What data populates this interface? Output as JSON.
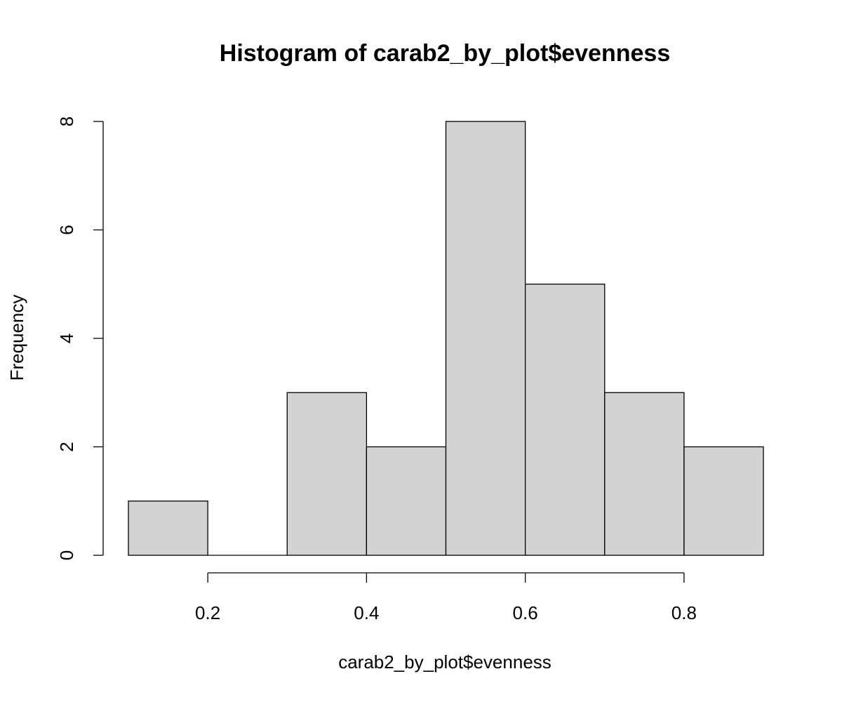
{
  "chart_data": {
    "type": "bar",
    "histogram": true,
    "title": "Histogram of carab2_by_plot$evenness",
    "xlabel": "carab2_by_plot$evenness",
    "ylabel": "Frequency",
    "bins": [
      {
        "from": 0.1,
        "to": 0.2,
        "count": 1
      },
      {
        "from": 0.2,
        "to": 0.3,
        "count": 0
      },
      {
        "from": 0.3,
        "to": 0.4,
        "count": 3
      },
      {
        "from": 0.4,
        "to": 0.5,
        "count": 2
      },
      {
        "from": 0.5,
        "to": 0.6,
        "count": 8
      },
      {
        "from": 0.6,
        "to": 0.7,
        "count": 5
      },
      {
        "from": 0.7,
        "to": 0.8,
        "count": 3
      },
      {
        "from": 0.8,
        "to": 0.9,
        "count": 2
      }
    ],
    "xlim": [
      0.1,
      0.9
    ],
    "ylim": [
      0,
      8
    ],
    "x_ticks": [
      {
        "value": 0.2,
        "label": "0.2"
      },
      {
        "value": 0.4,
        "label": "0.4"
      },
      {
        "value": 0.6,
        "label": "0.6"
      },
      {
        "value": 0.8,
        "label": "0.8"
      }
    ],
    "y_ticks": [
      {
        "value": 0,
        "label": "0"
      },
      {
        "value": 2,
        "label": "2"
      },
      {
        "value": 4,
        "label": "4"
      },
      {
        "value": 6,
        "label": "6"
      },
      {
        "value": 8,
        "label": "8"
      }
    ],
    "bar_fill": "#d3d3d3",
    "bar_stroke": "#000000",
    "grid": false,
    "legend": "none"
  }
}
